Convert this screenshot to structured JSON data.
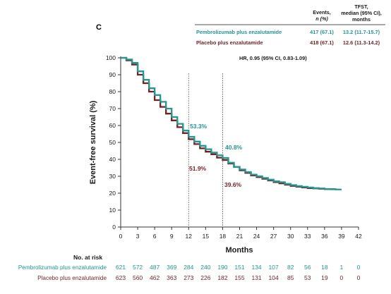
{
  "panel_label": "C",
  "colors": {
    "pembro": "#1e9a92",
    "placebo": "#7a1f1f",
    "axis": "#333333"
  },
  "header": {
    "events_line1": "Events,",
    "events_line2": "n (%)",
    "tfst_line1": "TFST,",
    "tfst_line2": "median (95% CI),",
    "tfst_line3": "months"
  },
  "legend": [
    {
      "name": "Pembrolizumab plus enzalutamide",
      "events": "417 (67.1)",
      "median": "13.2 (11.7-15.7)"
    },
    {
      "name": "Placebo plus enzalutamide",
      "events": "418 (67.1)",
      "median": "12.6 (11.3-14.2)"
    }
  ],
  "hr_text": "HR, 0.95 (95% CI, 0.83-1.09)",
  "annotations": {
    "pembro_12": "53.3%",
    "placebo_12": "51.9%",
    "pembro_18": "40.8%",
    "placebo_18": "39.6%"
  },
  "chart_data": {
    "type": "line",
    "xlabel": "Months",
    "ylabel": "Event-free survival (%)",
    "xlim": [
      0,
      42
    ],
    "ylim": [
      0,
      100
    ],
    "xticks": [
      0,
      3,
      6,
      9,
      12,
      15,
      18,
      21,
      24,
      27,
      30,
      33,
      36,
      39,
      42
    ],
    "yticks": [
      0,
      10,
      20,
      30,
      40,
      50,
      60,
      70,
      80,
      90,
      100
    ],
    "reference_lines_x": [
      12,
      18
    ],
    "series": [
      {
        "name": "Pembrolizumab plus enzalutamide",
        "x": [
          0,
          1,
          2,
          3,
          4,
          5,
          6,
          7,
          8,
          9,
          10,
          11,
          12,
          13,
          14,
          15,
          16,
          17,
          18,
          19,
          20,
          21,
          22,
          23,
          24,
          25,
          26,
          27,
          28,
          29,
          30,
          31,
          32,
          33,
          34,
          35,
          36,
          37,
          38,
          39
        ],
        "y": [
          100,
          99,
          97,
          92,
          87,
          82,
          78,
          74,
          70,
          65,
          61,
          57,
          53.3,
          50.5,
          48,
          46,
          44,
          42.4,
          40.8,
          38,
          35.5,
          34,
          32.5,
          31,
          30,
          29,
          28,
          27,
          26.5,
          25.5,
          24.8,
          24.2,
          23.8,
          23.4,
          23,
          22.8,
          22.5,
          22.3,
          22.2,
          22.2
        ]
      },
      {
        "name": "Placebo plus enzalutamide",
        "x": [
          0,
          1,
          2,
          3,
          4,
          5,
          6,
          7,
          8,
          9,
          10,
          11,
          12,
          13,
          14,
          15,
          16,
          17,
          18,
          19,
          20,
          21,
          22,
          23,
          24,
          25,
          26,
          27,
          28,
          29,
          30,
          31,
          32,
          33,
          34,
          35,
          36,
          37,
          38
        ],
        "y": [
          100,
          98.5,
          96,
          90,
          85,
          80,
          75,
          71,
          67,
          63,
          59,
          55.5,
          51.9,
          49,
          46.5,
          44.5,
          43,
          41,
          39.6,
          37.5,
          35.5,
          33.5,
          32,
          30.5,
          29.5,
          28.5,
          27.5,
          26.5,
          25.8,
          25,
          24.3,
          23.8,
          23.4,
          23,
          22.8,
          22.6,
          22.4,
          22.4,
          22.4
        ]
      }
    ]
  },
  "at_risk": {
    "title": "No. at risk",
    "rows": [
      {
        "label": "Pembrolizumab plus enzalutamide",
        "values": [
          "621",
          "572",
          "487",
          "369",
          "284",
          "240",
          "190",
          "151",
          "134",
          "107",
          "82",
          "56",
          "18",
          "1",
          "0"
        ]
      },
      {
        "label": "Placebo plus enzalutamide",
        "values": [
          "623",
          "560",
          "462",
          "363",
          "273",
          "226",
          "182",
          "155",
          "131",
          "104",
          "85",
          "53",
          "19",
          "0",
          "0"
        ]
      }
    ]
  }
}
